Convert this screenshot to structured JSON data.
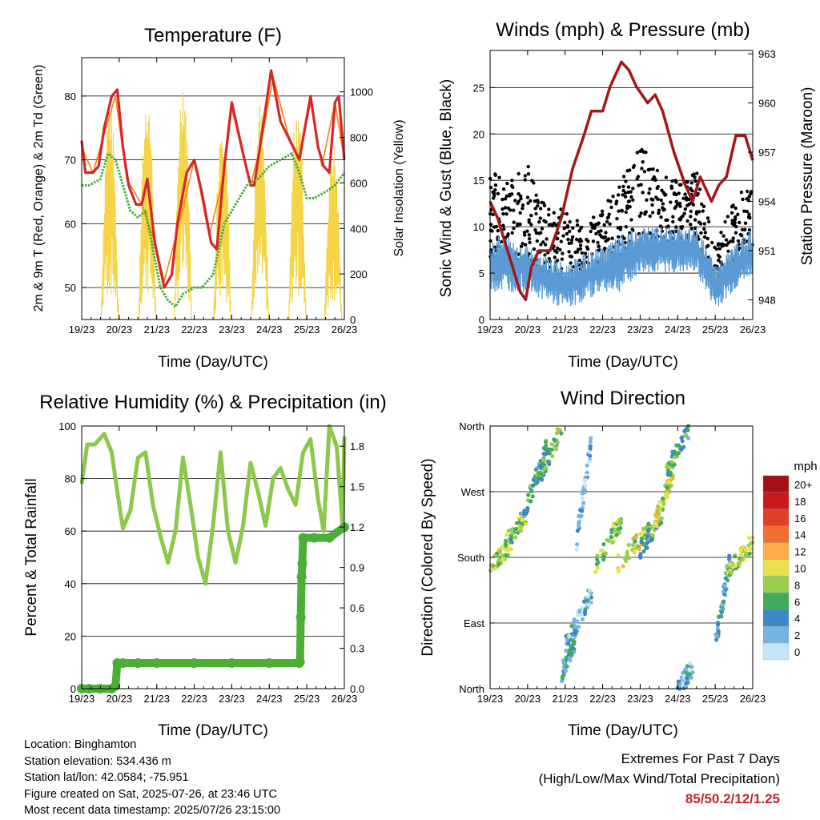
{
  "x_ticks": [
    "19/23",
    "20/23",
    "21/23",
    "22/23",
    "23/23",
    "24/23",
    "25/23",
    "26/23"
  ],
  "x_label": "Time (Day/UTC)",
  "legend": {
    "title": "mph",
    "labels": [
      "20+",
      "18",
      "16",
      "14",
      "12",
      "10",
      "8",
      "6",
      "4",
      "2",
      "0"
    ],
    "colors": [
      "#a50f15",
      "#cb181d",
      "#e0402a",
      "#f46d31",
      "#fdae4b",
      "#e6e24c",
      "#9acd4e",
      "#41ab5d",
      "#3f86c6",
      "#78b4e3",
      "#c6e4f7"
    ]
  },
  "info": {
    "location": "Location: Binghamton",
    "elevation": "Station elevation: 534.436 m",
    "latlon": "Station lat/lon: 42.0584; -75.951",
    "created": "Figure created on Sat, 2025-07-26, at 23:46 UTC",
    "recent": "Most recent data timestamp: 2025/07/26 23:15:00"
  },
  "extremes": {
    "title": "Extremes For Past 7 Days",
    "subtitle": "(High/Low/Max Wind/Total Precipitation)",
    "values": "85/50.2/12/1.25"
  },
  "chart_data": [
    {
      "type": "line",
      "title": "Temperature (F)",
      "ylabel": "2m & 9m T (Red, Orange) & 2m Td (Green)",
      "y2label": "Solar Insolation (Yellow)",
      "ylim": [
        45,
        86
      ],
      "yticks": [
        50,
        60,
        70,
        80
      ],
      "y2lim": [
        0,
        1150
      ],
      "y2ticks": [
        0,
        200,
        400,
        600,
        800,
        1000
      ],
      "xlim": [
        0,
        7
      ],
      "series": [
        {
          "color": "#d62728",
          "x": [
            0,
            0.1,
            0.3,
            0.45,
            0.6,
            0.8,
            0.95,
            1.1,
            1.25,
            1.45,
            1.6,
            1.75,
            1.95,
            2.2,
            2.4,
            2.55,
            2.8,
            3.0,
            3.2,
            3.45,
            3.6,
            3.8,
            4.0,
            4.3,
            4.5,
            4.6,
            4.8,
            5.05,
            5.3,
            5.55,
            5.8,
            6.1,
            6.3,
            6.45,
            6.6,
            6.75,
            6.85,
            7.0
          ],
          "y": [
            73,
            68,
            68,
            69,
            75,
            80,
            81,
            72,
            66,
            63,
            63,
            67,
            57,
            50,
            52,
            60,
            68,
            70,
            65,
            57,
            56,
            69,
            79,
            71,
            66,
            66,
            74,
            84,
            76,
            73,
            70,
            80,
            72,
            69,
            68,
            79,
            80,
            70
          ]
        },
        {
          "color": "#ff7f0e",
          "x": [
            0,
            0.3,
            0.6,
            0.9,
            1.2,
            1.6,
            1.9,
            2.2,
            2.6,
            3.0,
            3.4,
            3.8,
            4.0,
            4.5,
            4.8,
            5.1,
            5.5,
            5.8,
            6.1,
            6.4,
            6.75,
            7.0
          ],
          "y": [
            72,
            68,
            74,
            80,
            67,
            63,
            58,
            51,
            60,
            70,
            58,
            68,
            78,
            66,
            73,
            83,
            74,
            70,
            79,
            69,
            79,
            70
          ]
        },
        {
          "color": "#4cae37",
          "x": [
            0,
            0.2,
            0.5,
            0.7,
            0.9,
            1.1,
            1.3,
            1.5,
            1.7,
            1.9,
            2.1,
            2.3,
            2.5,
            2.7,
            3.0,
            3.2,
            3.5,
            3.8,
            4.1,
            4.4,
            4.7,
            5.0,
            5.3,
            5.6,
            5.8,
            6.0,
            6.2,
            6.5,
            6.75,
            7.0
          ],
          "y": [
            66,
            66,
            67,
            71,
            70,
            66,
            62,
            61,
            62,
            56,
            50,
            48,
            47,
            49,
            50,
            50,
            52,
            60,
            63,
            66,
            67,
            69,
            70,
            71,
            68,
            64,
            64,
            65,
            66,
            68
          ]
        }
      ],
      "solar_peaks": [
        {
          "x": 0.75,
          "y": 1000
        },
        {
          "x": 1.75,
          "y": 1030
        },
        {
          "x": 2.7,
          "y": 1110
        },
        {
          "x": 3.75,
          "y": 960
        },
        {
          "x": 4.75,
          "y": 960
        },
        {
          "x": 5.75,
          "y": 1000
        },
        {
          "x": 6.7,
          "y": 800
        }
      ]
    },
    {
      "type": "scatter",
      "title": "Winds (mph) & Pressure (mb)",
      "ylabel": "Sonic Wind & Gust (Blue, Black)",
      "y2label": "Station Pressure (Maroon)",
      "ylim": [
        0,
        29
      ],
      "yticks": [
        0,
        5,
        10,
        15,
        20,
        25
      ],
      "y2lim": [
        946.8,
        963.2
      ],
      "y2ticks": [
        948,
        951,
        954,
        957,
        960,
        963
      ],
      "xlim": [
        0,
        7
      ],
      "pressure": {
        "color": "#a31818",
        "x": [
          0,
          0.2,
          0.4,
          0.6,
          0.8,
          0.95,
          1.1,
          1.3,
          1.6,
          1.9,
          2.2,
          2.5,
          2.7,
          3.0,
          3.2,
          3.5,
          3.7,
          3.9,
          4.2,
          4.4,
          4.6,
          4.9,
          5.2,
          5.4,
          5.6,
          5.9,
          6.1,
          6.3,
          6.55,
          6.8,
          7.0
        ],
        "y": [
          954,
          953,
          951.5,
          950,
          948.5,
          948,
          950,
          951,
          951,
          953,
          956,
          958,
          959.5,
          959.5,
          961,
          962.5,
          962,
          961,
          960,
          960.5,
          959.5,
          957,
          955,
          954,
          955.5,
          954,
          955,
          955.5,
          958,
          958,
          956.5
        ]
      },
      "wind_band": {
        "color": "#5b9bd5",
        "x": [
          0,
          0.5,
          1.0,
          1.5,
          2.0,
          2.5,
          3.0,
          3.5,
          4.0,
          4.5,
          5.0,
          5.5,
          6.0,
          6.5,
          7.0
        ],
        "low": [
          3,
          3,
          3,
          2,
          1,
          2,
          3,
          3,
          5,
          5,
          5,
          5,
          1,
          3,
          5
        ],
        "high": [
          9,
          9,
          8,
          7,
          6,
          7,
          8,
          9,
          10,
          10,
          10,
          10,
          6,
          8,
          10
        ]
      },
      "gust_band": {
        "color": "#000000",
        "x": [
          0,
          0.5,
          1.0,
          1.5,
          2.0,
          2.5,
          3.0,
          3.5,
          4.0,
          4.5,
          5.0,
          5.5,
          6.0,
          6.5,
          7.0
        ],
        "low": [
          5,
          5,
          5,
          4,
          3,
          4,
          6,
          6,
          8,
          8,
          8,
          8,
          3,
          5,
          8
        ],
        "high": [
          16,
          15,
          17,
          12,
          12,
          10,
          12,
          15,
          19,
          16,
          15,
          16,
          8,
          13,
          15
        ]
      }
    },
    {
      "type": "line",
      "title": "Relative Humidity (%) & Precipitation (in)",
      "ylabel": "Percent & Total Rainfall",
      "ylim": [
        0,
        100
      ],
      "yticks": [
        0,
        20,
        40,
        60,
        80,
        100
      ],
      "y2lim": [
        0,
        1.95
      ],
      "y2ticks": [
        0.0,
        0.3,
        0.6,
        0.9,
        1.2,
        1.5,
        1.8
      ],
      "y2ticklabels": [
        "0.0",
        "0.3",
        "0.6",
        "0.9",
        "1.2",
        "1.5",
        "1.8"
      ],
      "xlim": [
        0,
        7
      ],
      "rh": {
        "color": "#8cc84b",
        "x": [
          0,
          0.15,
          0.35,
          0.6,
          0.8,
          0.95,
          1.1,
          1.3,
          1.5,
          1.7,
          1.9,
          2.1,
          2.3,
          2.5,
          2.7,
          2.9,
          3.1,
          3.3,
          3.5,
          3.7,
          3.9,
          4.1,
          4.3,
          4.5,
          4.7,
          4.9,
          5.1,
          5.3,
          5.5,
          5.7,
          5.9,
          6.1,
          6.3,
          6.45,
          6.6,
          6.8,
          6.95,
          7.0
        ],
        "y": [
          78,
          93,
          93,
          97,
          90,
          75,
          61,
          68,
          88,
          90,
          70,
          58,
          48,
          60,
          88,
          70,
          50,
          40,
          62,
          90,
          60,
          48,
          62,
          86,
          75,
          62,
          80,
          84,
          76,
          70,
          90,
          95,
          72,
          60,
          100,
          92,
          62,
          96
        ]
      },
      "precip": {
        "color": "#4cae37",
        "x": [
          0,
          0.2,
          0.5,
          0.8,
          0.9,
          0.95,
          1.1,
          1.5,
          2.0,
          3.0,
          4.0,
          5.0,
          5.8,
          5.82,
          5.84,
          5.86,
          5.88,
          5.9,
          6.2,
          6.6,
          7.0
        ],
        "y": [
          0,
          0,
          0,
          0,
          0.02,
          0.19,
          0.19,
          0.19,
          0.19,
          0.19,
          0.19,
          0.19,
          0.19,
          0.2,
          0.53,
          0.83,
          0.93,
          1.12,
          1.12,
          1.12,
          1.2
        ]
      }
    },
    {
      "type": "scatter",
      "title": "Wind Direction",
      "ylabel": "Direction (Colored By Speed)",
      "ylim": [
        0,
        360
      ],
      "yticks": [
        0,
        90,
        180,
        270,
        360
      ],
      "yticklabels": [
        "North",
        "East",
        "South",
        "West",
        "North"
      ],
      "xlim": [
        0,
        7
      ],
      "points": [
        {
          "x0": 0.0,
          "x1": 0.6,
          "d0": 170,
          "d1": 200,
          "s": 8
        },
        {
          "x0": 0.4,
          "x1": 1.0,
          "d0": 200,
          "d1": 240,
          "s": 7
        },
        {
          "x0": 0.9,
          "x1": 1.5,
          "d0": 240,
          "d1": 330,
          "s": 5
        },
        {
          "x0": 1.3,
          "x1": 1.9,
          "d0": 290,
          "d1": 355,
          "s": 6
        },
        {
          "x0": 1.9,
          "x1": 2.3,
          "d0": 20,
          "d1": 70,
          "s": 4
        },
        {
          "x0": 2.0,
          "x1": 2.7,
          "d0": 60,
          "d1": 130,
          "s": 3
        },
        {
          "x0": 2.3,
          "x1": 2.7,
          "d0": 200,
          "d1": 340,
          "s": 2
        },
        {
          "x0": 2.8,
          "x1": 3.5,
          "d0": 170,
          "d1": 230,
          "s": 8
        },
        {
          "x0": 3.4,
          "x1": 4.3,
          "d0": 170,
          "d1": 220,
          "s": 9
        },
        {
          "x0": 4.0,
          "x1": 4.6,
          "d0": 190,
          "d1": 240,
          "s": 6
        },
        {
          "x0": 4.4,
          "x1": 4.9,
          "d0": 230,
          "d1": 300,
          "s": 9
        },
        {
          "x0": 4.7,
          "x1": 5.3,
          "d0": 300,
          "d1": 355,
          "s": 5
        },
        {
          "x0": 5.0,
          "x1": 5.4,
          "d0": 0,
          "d1": 30,
          "s": 3
        },
        {
          "x0": 6.0,
          "x1": 6.4,
          "d0": 60,
          "d1": 180,
          "s": 4
        },
        {
          "x0": 6.3,
          "x1": 7.0,
          "d0": 160,
          "d1": 200,
          "s": 8
        }
      ]
    }
  ]
}
